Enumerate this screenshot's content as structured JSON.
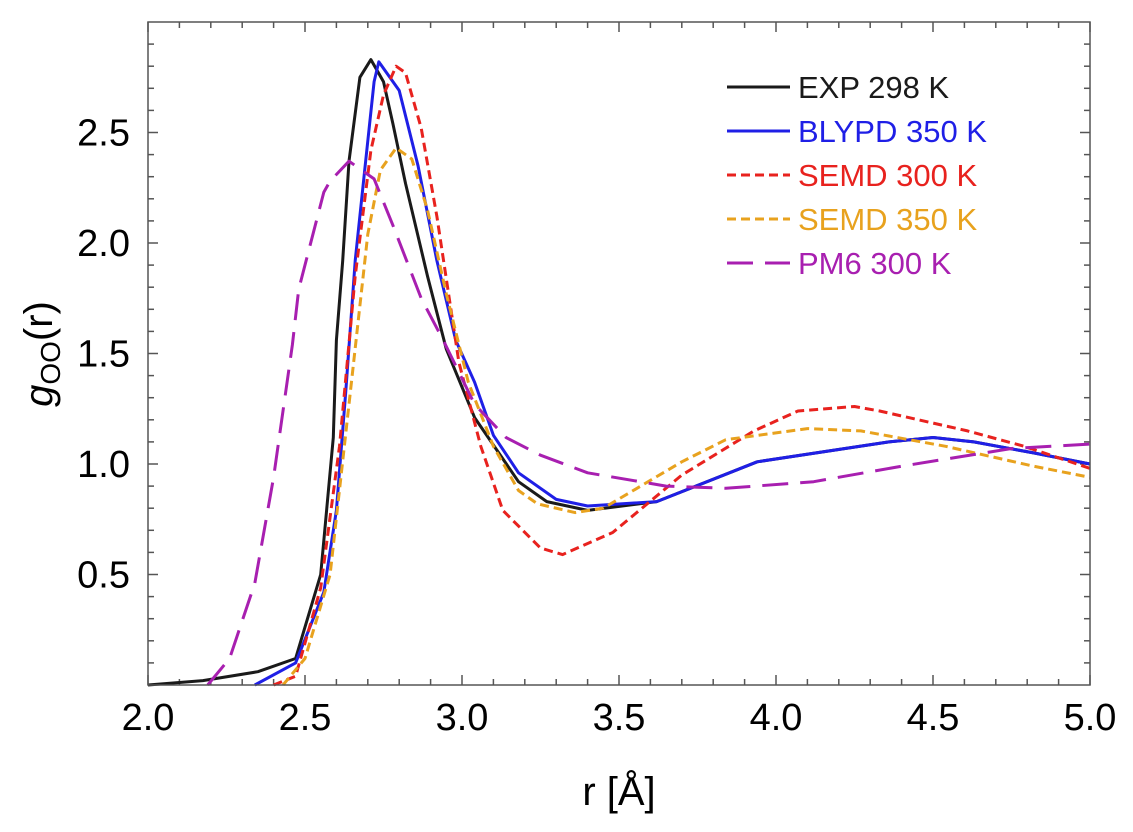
{
  "chart_data": {
    "type": "line",
    "title": "",
    "xlabel": "r [Å]",
    "ylabel_main": "g",
    "ylabel_sub": "OO",
    "ylabel_tail": "(r)",
    "xlim": [
      2.0,
      5.0
    ],
    "ylim": [
      0.0,
      3.0
    ],
    "xticks": [
      2.0,
      2.5,
      3.0,
      3.5,
      4.0,
      4.5,
      5.0
    ],
    "xtick_labels": [
      "2.0",
      "2.5",
      "3.0",
      "3.5",
      "4.0",
      "4.5",
      "5.0"
    ],
    "yticks": [
      0.5,
      1.0,
      1.5,
      2.0,
      2.5
    ],
    "ytick_labels": [
      "0.5",
      "1.0",
      "1.5",
      "2.0",
      "2.5"
    ],
    "grid": false,
    "legend_position": "top-right",
    "series": [
      {
        "name": "EXP 298 K",
        "color": "#1a1a1a",
        "style": "solid",
        "x": [
          2.0,
          2.175,
          2.35,
          2.47,
          2.55,
          2.59,
          2.6,
          2.62,
          2.64,
          2.675,
          2.71,
          2.75,
          2.78,
          2.82,
          2.89,
          2.95,
          3.04,
          3.18,
          3.27,
          3.4,
          3.62,
          3.94,
          4.36,
          4.5,
          4.63,
          4.82,
          5.0
        ],
        "y": [
          0.0,
          0.02,
          0.06,
          0.12,
          0.5,
          1.12,
          1.56,
          1.92,
          2.37,
          2.75,
          2.83,
          2.73,
          2.54,
          2.27,
          1.85,
          1.52,
          1.21,
          0.92,
          0.83,
          0.79,
          0.83,
          1.01,
          1.1,
          1.12,
          1.1,
          1.05,
          1.0
        ]
      },
      {
        "name": "BLYPD 350 K",
        "color": "#1f1fe6",
        "style": "solid",
        "x": [
          2.34,
          2.47,
          2.56,
          2.6,
          2.63,
          2.66,
          2.69,
          2.72,
          2.735,
          2.8,
          2.86,
          2.92,
          2.98,
          3.04,
          3.1,
          3.18,
          3.3,
          3.4,
          3.62,
          3.94,
          4.36,
          4.5,
          4.63,
          4.82,
          5.0
        ],
        "y": [
          0.0,
          0.1,
          0.42,
          0.79,
          1.33,
          1.92,
          2.33,
          2.73,
          2.82,
          2.69,
          2.35,
          1.92,
          1.56,
          1.37,
          1.13,
          0.96,
          0.84,
          0.81,
          0.83,
          1.01,
          1.1,
          1.12,
          1.1,
          1.05,
          1.0
        ]
      },
      {
        "name": "SEMD 300 K",
        "color": "#e8221e",
        "style": "short-dash",
        "x": [
          2.4,
          2.47,
          2.55,
          2.61,
          2.66,
          2.71,
          2.75,
          2.79,
          2.82,
          2.87,
          2.92,
          2.99,
          3.06,
          3.13,
          3.25,
          3.32,
          3.48,
          3.7,
          3.93,
          4.07,
          4.25,
          4.33,
          4.61,
          4.79,
          5.0
        ],
        "y": [
          0.0,
          0.04,
          0.44,
          1.08,
          1.85,
          2.42,
          2.67,
          2.8,
          2.77,
          2.52,
          2.12,
          1.46,
          1.08,
          0.79,
          0.62,
          0.59,
          0.69,
          0.95,
          1.15,
          1.24,
          1.26,
          1.24,
          1.15,
          1.08,
          0.98
        ]
      },
      {
        "name": "SEMD 350 K",
        "color": "#e8a21e",
        "style": "short-dash",
        "x": [
          2.43,
          2.5,
          2.58,
          2.64,
          2.7,
          2.74,
          2.79,
          2.84,
          2.89,
          2.95,
          3.02,
          3.1,
          3.18,
          3.24,
          3.36,
          3.45,
          3.7,
          3.84,
          4.1,
          4.27,
          4.54,
          4.82,
          5.0
        ],
        "y": [
          0.0,
          0.12,
          0.5,
          1.27,
          2.04,
          2.33,
          2.43,
          2.38,
          2.15,
          1.77,
          1.37,
          1.08,
          0.88,
          0.82,
          0.78,
          0.8,
          1.01,
          1.11,
          1.16,
          1.15,
          1.08,
          0.99,
          0.94
        ]
      },
      {
        "name": "PM6 300 K",
        "color": "#a81fb0",
        "style": "long-dash",
        "x": [
          2.19,
          2.26,
          2.34,
          2.4,
          2.46,
          2.48,
          2.56,
          2.58,
          2.64,
          2.72,
          2.78,
          2.87,
          2.94,
          3.04,
          3.14,
          3.25,
          3.4,
          3.65,
          3.84,
          4.12,
          4.4,
          4.75,
          5.0
        ],
        "y": [
          0.0,
          0.12,
          0.46,
          0.94,
          1.54,
          1.79,
          2.23,
          2.28,
          2.37,
          2.29,
          2.08,
          1.75,
          1.56,
          1.27,
          1.12,
          1.04,
          0.96,
          0.9,
          0.89,
          0.92,
          0.99,
          1.07,
          1.09
        ]
      }
    ]
  }
}
